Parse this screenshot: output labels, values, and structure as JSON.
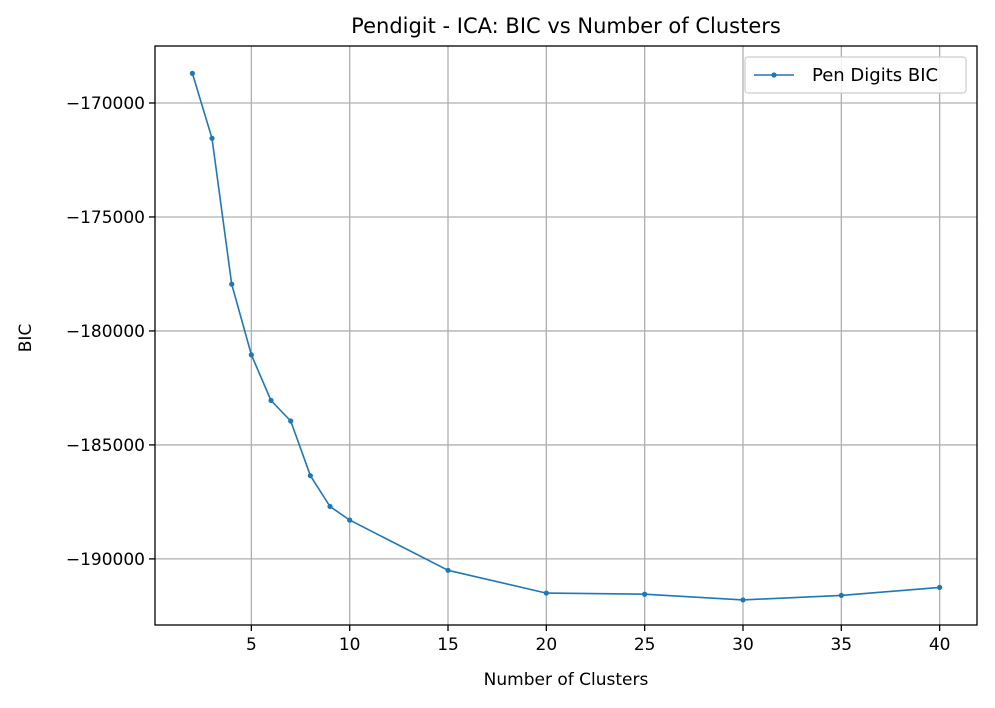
{
  "chart_data": {
    "type": "line",
    "title": "Pendigit - ICA: BIC vs Number of Clusters",
    "xlabel": "Number of Clusters",
    "ylabel": "BIC",
    "xlim": [
      0.1,
      41.9
    ],
    "ylim": [
      -192900,
      -167500
    ],
    "xticks": [
      5,
      10,
      15,
      20,
      25,
      30,
      35,
      40
    ],
    "yticks": [
      -190000,
      -185000,
      -180000,
      -175000,
      -170000
    ],
    "ytick_labels": [
      "−190000",
      "−185000",
      "−180000",
      "−175000",
      "−170000"
    ],
    "grid": true,
    "legend_position": "top-right",
    "series": [
      {
        "name": "Pen Digits BIC",
        "color": "#1f77b4",
        "x": [
          2,
          3,
          4,
          5,
          6,
          7,
          8,
          9,
          10,
          15,
          20,
          25,
          30,
          35,
          40
        ],
        "y": [
          -168700,
          -171550,
          -177950,
          -181050,
          -183050,
          -183950,
          -186350,
          -187700,
          -188300,
          -190500,
          -191500,
          -191550,
          -191800,
          -191600,
          -191250
        ]
      }
    ]
  }
}
